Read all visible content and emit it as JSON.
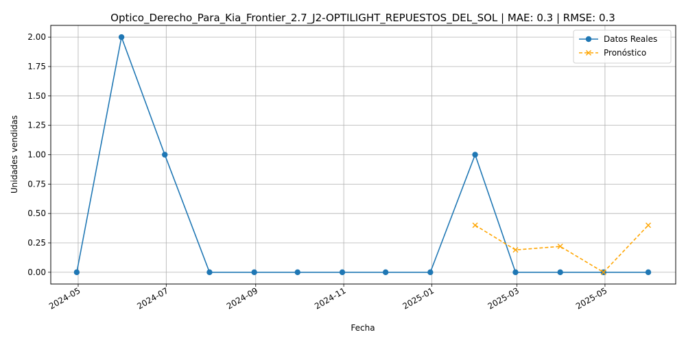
{
  "chart_data": {
    "type": "line",
    "title": "Optico_Derecho_Para_Kia_Frontier_2.7_J2-OPTILIGHT_REPUESTOS_DEL_SOL | MAE: 0.3 | RMSE: 0.3",
    "xlabel": "Fecha",
    "ylabel": "Unidades vendidas",
    "xlim": [
      "2024-04-12",
      "2025-06-19"
    ],
    "ylim": [
      -0.1,
      2.1
    ],
    "grid": true,
    "legend_position": "top-right",
    "x_ticks": [
      "2024-05",
      "2024-07",
      "2024-09",
      "2024-11",
      "2025-01",
      "2025-03",
      "2025-05"
    ],
    "y_ticks": [
      "0.00",
      "0.25",
      "0.50",
      "0.75",
      "1.00",
      "1.25",
      "1.50",
      "1.75",
      "2.00"
    ],
    "series": [
      {
        "name": "Datos Reales",
        "color": "#1f77b4",
        "marker": "circle",
        "line_style": "solid",
        "x": [
          "2024-04-30",
          "2024-05-31",
          "2024-06-30",
          "2024-07-31",
          "2024-08-31",
          "2024-09-30",
          "2024-10-31",
          "2024-11-30",
          "2024-12-31",
          "2025-01-31",
          "2025-02-28",
          "2025-03-31",
          "2025-04-30",
          "2025-05-31"
        ],
        "values": [
          0,
          2,
          1,
          0,
          0,
          0,
          0,
          0,
          0,
          1,
          0,
          0,
          0,
          0
        ]
      },
      {
        "name": "Pronóstico",
        "color": "#ffa500",
        "marker": "x",
        "line_style": "dashed",
        "x": [
          "2025-01-31",
          "2025-02-28",
          "2025-03-31",
          "2025-04-30",
          "2025-05-31"
        ],
        "values": [
          0.4,
          0.19,
          0.22,
          0.0,
          0.4
        ]
      }
    ]
  }
}
